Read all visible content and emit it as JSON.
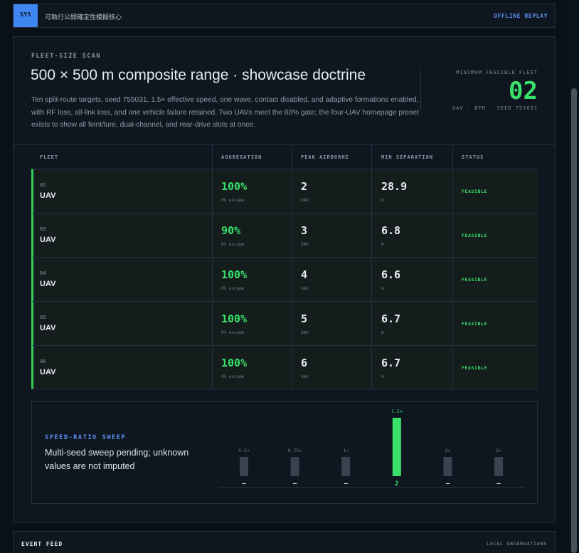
{
  "topbar": {
    "badge": "SYS",
    "title": "可執行公開確定性模擬核心",
    "replay_link": "OFFLINE REPLAY"
  },
  "scan": {
    "label": "FLEET-SIZE SCAN",
    "headline": "500 × 500 m composite range · showcase doctrine",
    "description": "Ten split-route targets, seed 755031, 1.5× effective speed, one wave, contact disabled, and adaptive formations enabled, with RF loss, all-link loss, and one vehicle failure retained. Two UAVs meet the 80% gate; the four-UAV homepage preset exists to show all feint/lure, dual-channel, and rear-drive slots at once.",
    "min_fleet_label": "MINIMUM FEASIBLE FLEET",
    "min_fleet_value": "02",
    "min_fleet_sub": "UAV · DFR · SEED 755031"
  },
  "table": {
    "headers": {
      "fleet": "FLEET",
      "aggregation": "AGGREGATION",
      "peak": "PEAK AIRBORNE",
      "separation": "MIN SEPARATION",
      "status": "STATUS"
    },
    "rows": [
      {
        "fleet": "02",
        "unit": "UAV",
        "agg": "100%",
        "agg_sub": "0% escape",
        "peak": "2",
        "peak_sub": "UAV",
        "sep": "28.9",
        "sep_sub": "m",
        "status": "FEASIBLE"
      },
      {
        "fleet": "03",
        "unit": "UAV",
        "agg": "90%",
        "agg_sub": "0% escape",
        "peak": "3",
        "peak_sub": "UAV",
        "sep": "6.8",
        "sep_sub": "m",
        "status": "FEASIBLE"
      },
      {
        "fleet": "04",
        "unit": "UAV",
        "agg": "100%",
        "agg_sub": "0% escape",
        "peak": "4",
        "peak_sub": "UAV",
        "sep": "6.6",
        "sep_sub": "m",
        "status": "FEASIBLE"
      },
      {
        "fleet": "05",
        "unit": "UAV",
        "agg": "100%",
        "agg_sub": "0% escape",
        "peak": "5",
        "peak_sub": "UAV",
        "sep": "6.7",
        "sep_sub": "m",
        "status": "FEASIBLE"
      },
      {
        "fleet": "06",
        "unit": "UAV",
        "agg": "100%",
        "agg_sub": "0% escape",
        "peak": "6",
        "peak_sub": "UAV",
        "sep": "6.7",
        "sep_sub": "m",
        "status": "FEASIBLE"
      }
    ]
  },
  "sweep": {
    "label": "SPEED-RATIO SWEEP",
    "text": "Multi-seed sweep pending; unknown values are not imputed"
  },
  "chart_data": {
    "type": "bar",
    "categories": [
      "0.5×",
      "0.75×",
      "1×",
      "1.5×",
      "2×",
      "3×"
    ],
    "value_labels": [
      "–",
      "–",
      "–",
      "2",
      "–",
      "–"
    ],
    "values": [
      null,
      null,
      null,
      2,
      null,
      null
    ],
    "highlight": "1.5×",
    "colors": {
      "known": "#39e06a",
      "unknown": "#3a4250"
    }
  },
  "events": {
    "label": "EVENT FEED",
    "side": "LOCAL OBSERVATIONS"
  },
  "colors": {
    "accent": "#3f86f0",
    "feasible": "#39e06a",
    "border": "#263141"
  }
}
